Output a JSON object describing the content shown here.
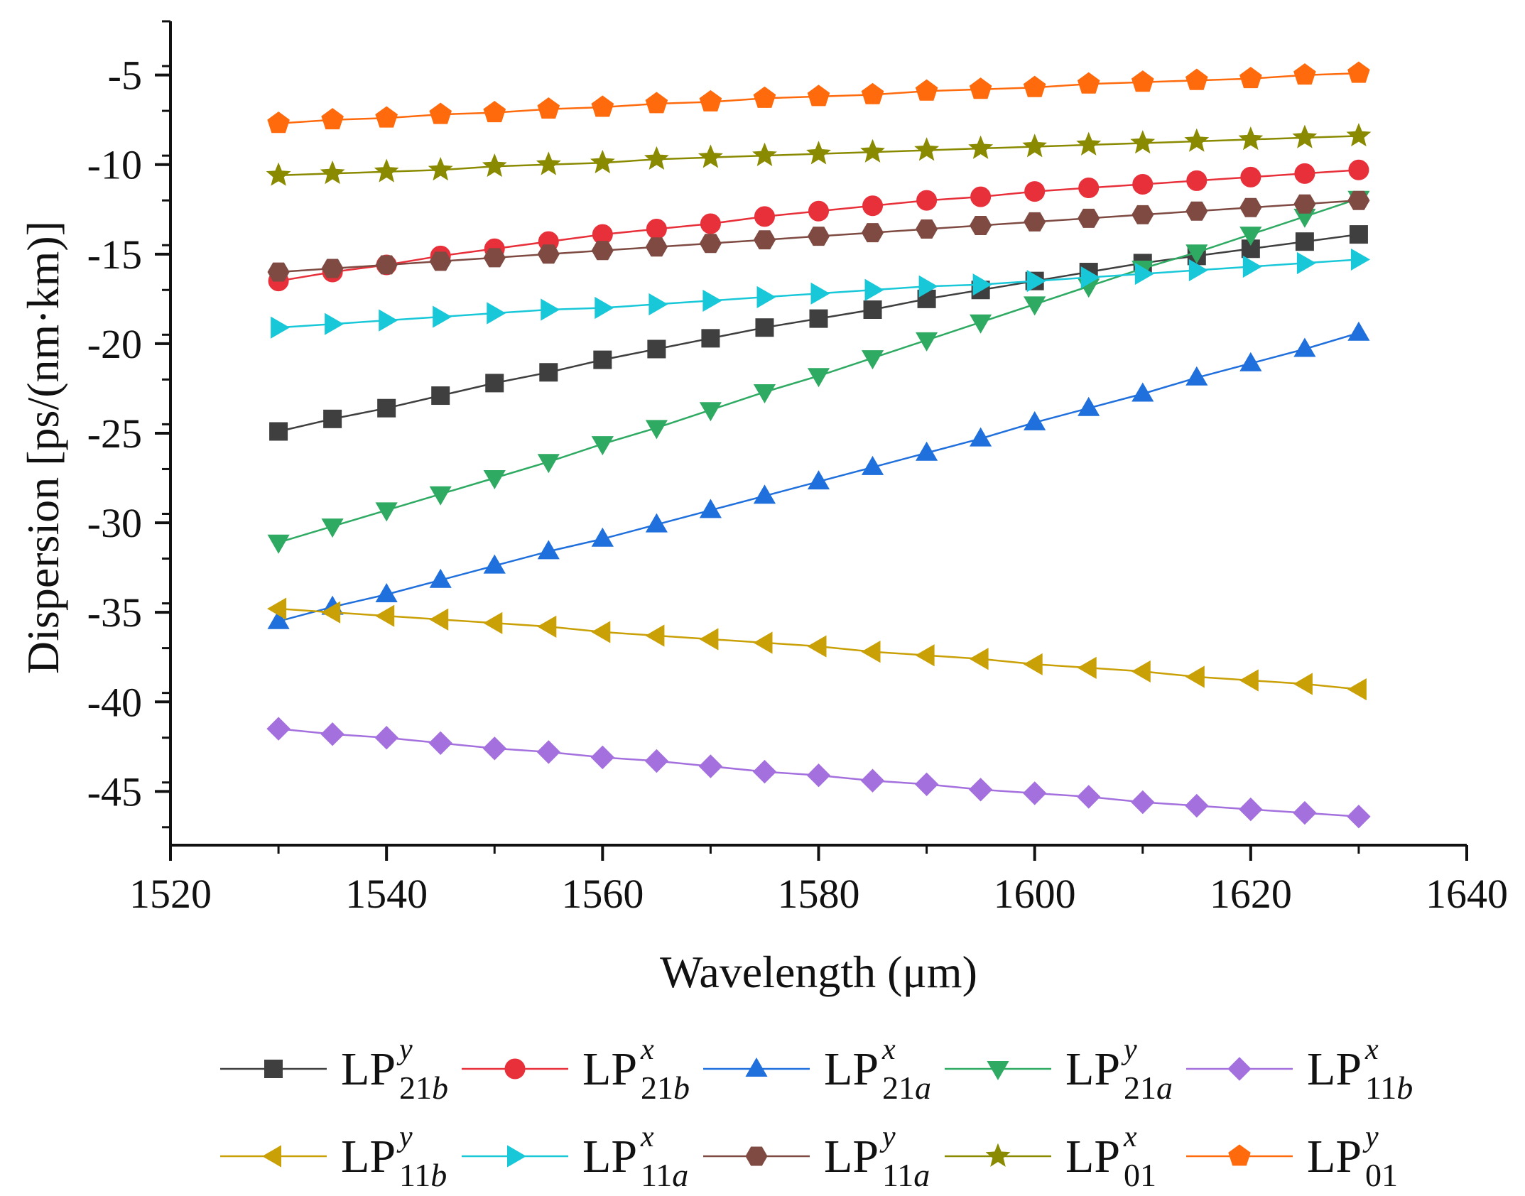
{
  "chart_data": {
    "type": "line",
    "title": "",
    "xlabel": "Wavelength (μm)",
    "ylabel": "Dispersion [ps/(nm·km)]",
    "xlim": [
      1520,
      1640
    ],
    "ylim": [
      -48,
      -2
    ],
    "xticks": [
      1520,
      1540,
      1560,
      1580,
      1600,
      1620,
      1640
    ],
    "yticks": [
      -5,
      -10,
      -15,
      -20,
      -25,
      -30,
      -35,
      -40,
      -45
    ],
    "grid": false,
    "legend_position": "bottom",
    "x": [
      1530,
      1535,
      1540,
      1545,
      1550,
      1555,
      1560,
      1565,
      1570,
      1575,
      1580,
      1585,
      1590,
      1595,
      1600,
      1605,
      1610,
      1615,
      1620,
      1625,
      1630
    ],
    "series": [
      {
        "name": "LP21b y",
        "base": "LP",
        "sub": "21b",
        "sup": "y",
        "color": "#3f3f3f",
        "marker": "square",
        "values": [
          -24.9,
          -24.2,
          -23.6,
          -22.9,
          -22.2,
          -21.6,
          -20.9,
          -20.3,
          -19.7,
          -19.1,
          -18.6,
          -18.1,
          -17.5,
          -17.0,
          -16.5,
          -16.0,
          -15.5,
          -15.1,
          -14.7,
          -14.3,
          -13.9
        ]
      },
      {
        "name": "LP21b x",
        "base": "LP",
        "sub": "21b",
        "sup": "x",
        "color": "#e8303a",
        "marker": "circle",
        "values": [
          -16.5,
          -16.0,
          -15.6,
          -15.1,
          -14.7,
          -14.3,
          -13.9,
          -13.6,
          -13.3,
          -12.9,
          -12.6,
          -12.3,
          -12.0,
          -11.8,
          -11.5,
          -11.3,
          -11.1,
          -10.9,
          -10.7,
          -10.5,
          -10.3
        ]
      },
      {
        "name": "LP21a x",
        "base": "LP",
        "sub": "21a",
        "sup": "x",
        "color": "#1f6fdc",
        "marker": "triangle-up",
        "values": [
          -35.5,
          -34.7,
          -34.0,
          -33.2,
          -32.4,
          -31.6,
          -30.9,
          -30.1,
          -29.3,
          -28.5,
          -27.7,
          -26.9,
          -26.1,
          -25.3,
          -24.4,
          -23.6,
          -22.8,
          -21.9,
          -21.1,
          -20.3,
          -19.4
        ]
      },
      {
        "name": "LP21a y",
        "base": "LP",
        "sub": "21a",
        "sup": "y",
        "color": "#2faa62",
        "marker": "triangle-down",
        "values": [
          -31.1,
          -30.2,
          -29.3,
          -28.4,
          -27.5,
          -26.6,
          -25.6,
          -24.7,
          -23.7,
          -22.7,
          -21.8,
          -20.8,
          -19.8,
          -18.8,
          -17.8,
          -16.8,
          -15.8,
          -14.9,
          -13.9,
          -12.9,
          -11.9
        ]
      },
      {
        "name": "LP11b x",
        "base": "LP",
        "sub": "11b",
        "sup": "x",
        "color": "#a470de",
        "marker": "diamond",
        "values": [
          -41.5,
          -41.8,
          -42.0,
          -42.3,
          -42.6,
          -42.8,
          -43.1,
          -43.3,
          -43.6,
          -43.9,
          -44.1,
          -44.4,
          -44.6,
          -44.9,
          -45.1,
          -45.3,
          -45.6,
          -45.8,
          -46.0,
          -46.2,
          -46.4
        ]
      },
      {
        "name": "LP11b y",
        "base": "LP",
        "sub": "11b",
        "sup": "y",
        "color": "#c9a006",
        "marker": "triangle-left",
        "values": [
          -34.8,
          -35.0,
          -35.2,
          -35.4,
          -35.6,
          -35.8,
          -36.1,
          -36.3,
          -36.5,
          -36.7,
          -36.9,
          -37.2,
          -37.4,
          -37.6,
          -37.9,
          -38.1,
          -38.3,
          -38.6,
          -38.8,
          -39.0,
          -39.3
        ]
      },
      {
        "name": "LP11a x",
        "base": "LP",
        "sub": "11a",
        "sup": "x",
        "color": "#18c8d8",
        "marker": "triangle-right",
        "values": [
          -19.1,
          -18.9,
          -18.7,
          -18.5,
          -18.3,
          -18.1,
          -18.0,
          -17.8,
          -17.6,
          -17.4,
          -17.2,
          -17.0,
          -16.8,
          -16.7,
          -16.5,
          -16.3,
          -16.1,
          -15.9,
          -15.7,
          -15.5,
          -15.3
        ]
      },
      {
        "name": "LP11a y",
        "base": "LP",
        "sub": "11a",
        "sup": "y",
        "color": "#7e4a42",
        "marker": "hexagon",
        "values": [
          -16.0,
          -15.8,
          -15.6,
          -15.4,
          -15.2,
          -15.0,
          -14.8,
          -14.6,
          -14.4,
          -14.2,
          -14.0,
          -13.8,
          -13.6,
          -13.4,
          -13.2,
          -13.0,
          -12.8,
          -12.6,
          -12.4,
          -12.2,
          -12.0
        ]
      },
      {
        "name": "LP01 x",
        "base": "LP",
        "sub": "01",
        "sup": "x",
        "color": "#8a8a00",
        "marker": "star",
        "values": [
          -10.6,
          -10.5,
          -10.4,
          -10.3,
          -10.1,
          -10.0,
          -9.9,
          -9.7,
          -9.6,
          -9.5,
          -9.4,
          -9.3,
          -9.2,
          -9.1,
          -9.0,
          -8.9,
          -8.8,
          -8.7,
          -8.6,
          -8.5,
          -8.4
        ]
      },
      {
        "name": "LP01 y",
        "base": "LP",
        "sub": "01",
        "sup": "y",
        "color": "#ff6a0d",
        "marker": "pentagon",
        "values": [
          -7.7,
          -7.5,
          -7.4,
          -7.2,
          -7.1,
          -6.9,
          -6.8,
          -6.6,
          -6.5,
          -6.3,
          -6.2,
          -6.1,
          -5.9,
          -5.8,
          -5.7,
          -5.5,
          -5.4,
          -5.3,
          -5.2,
          -5.0,
          -4.9
        ]
      }
    ]
  }
}
